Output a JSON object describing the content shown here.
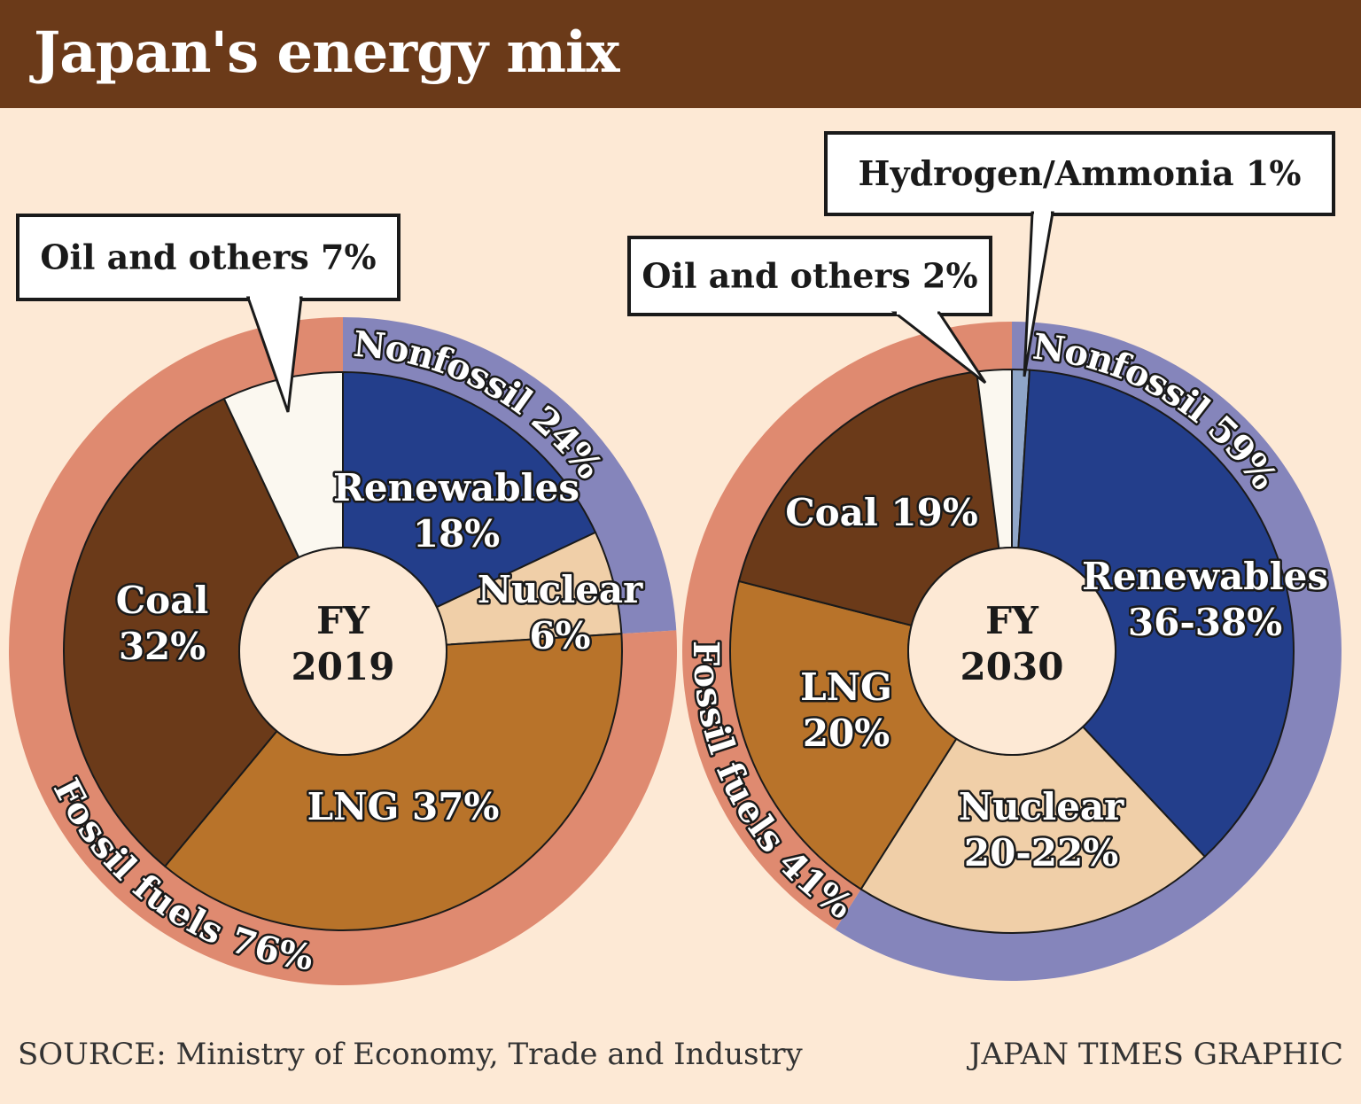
{
  "title": "Japan's energy mix",
  "footer": {
    "source": "SOURCE: Ministry of Economy, Trade and Industry",
    "credit": "JAPAN TIMES GRAPHIC"
  },
  "colors": {
    "header": "#6b3a19",
    "background": "#fde9d5",
    "renewables": "#233e8b",
    "nuclear": "#f0cfa8",
    "lng": "#b8732a",
    "coal": "#6b3a19",
    "oil": "#fbf8f0",
    "hydrogen": "#8fa6c8",
    "nonfossil_ring": "#8585bb",
    "fossil_ring": "#df8a70"
  },
  "chart_data": [
    {
      "type": "pie",
      "center_label": [
        "FY",
        "2019"
      ],
      "slices": [
        {
          "name": "Renewables",
          "label": [
            "Renewables",
            "18%"
          ],
          "value": 18,
          "color": "#233e8b"
        },
        {
          "name": "Nuclear",
          "label": [
            "Nuclear",
            "6%"
          ],
          "value": 6,
          "color": "#f0cfa8"
        },
        {
          "name": "LNG",
          "label": [
            "LNG 37%"
          ],
          "value": 37,
          "color": "#b8732a"
        },
        {
          "name": "Coal",
          "label": [
            "Coal",
            "32%"
          ],
          "value": 32,
          "color": "#6b3a19"
        },
        {
          "name": "Oil and others",
          "label": [],
          "value": 7,
          "color": "#fbf8f0"
        }
      ],
      "outer_ring": [
        {
          "name": "Nonfossil",
          "label": "Nonfossil 24%",
          "value": 24,
          "color": "#8585bb"
        },
        {
          "name": "Fossil fuels",
          "label": "Fossil fuels 76%",
          "value": 76,
          "color": "#df8a70"
        }
      ],
      "callouts": [
        "Oil and others 7%"
      ]
    },
    {
      "type": "pie",
      "center_label": [
        "FY",
        "2030"
      ],
      "slices": [
        {
          "name": "Hydrogen/Ammonia",
          "label": [],
          "value": 1,
          "color": "#8fa6c8"
        },
        {
          "name": "Renewables",
          "label": [
            "Renewables",
            "36-38%"
          ],
          "value": 37,
          "range": [
            36,
            38
          ],
          "color": "#233e8b"
        },
        {
          "name": "Nuclear",
          "label": [
            "Nuclear",
            "20-22%"
          ],
          "value": 21,
          "range": [
            20,
            22
          ],
          "color": "#f0cfa8"
        },
        {
          "name": "LNG",
          "label": [
            "LNG",
            "20%"
          ],
          "value": 20,
          "color": "#b8732a"
        },
        {
          "name": "Coal",
          "label": [
            "Coal 19%"
          ],
          "value": 19,
          "color": "#6b3a19"
        },
        {
          "name": "Oil and others",
          "label": [],
          "value": 2,
          "color": "#fbf8f0"
        }
      ],
      "outer_ring": [
        {
          "name": "Nonfossil",
          "label": "Nonfossil 59%",
          "value": 59,
          "color": "#8585bb"
        },
        {
          "name": "Fossil fuels",
          "label": "Fossil fuels 41%",
          "value": 41,
          "color": "#df8a70"
        }
      ],
      "callouts": [
        "Oil and others 2%",
        "Hydrogen/Ammonia 1%"
      ]
    }
  ]
}
